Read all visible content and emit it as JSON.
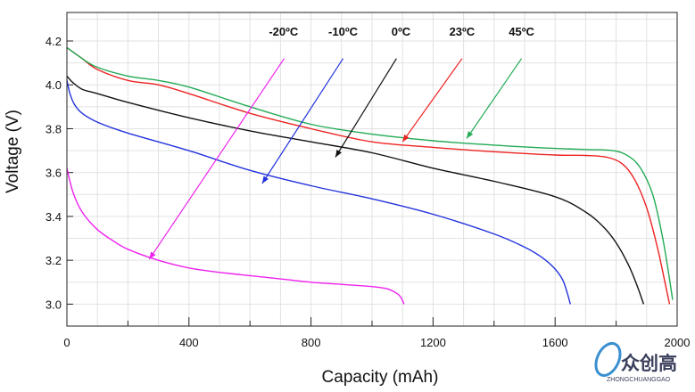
{
  "chart_data": {
    "type": "line",
    "title": "",
    "xlabel": "Capacity (mAh)",
    "ylabel": "Voltage (V)",
    "xlim": [
      0,
      2000
    ],
    "ylim": [
      2.9,
      4.33
    ],
    "x_ticks": [
      0,
      400,
      800,
      1200,
      1600,
      2000
    ],
    "x_tick_labels": [
      "0",
      "400",
      "800",
      "1200",
      "1600",
      "2000"
    ],
    "y_ticks": [
      3.0,
      3.2,
      3.4,
      3.6,
      3.8,
      4.0,
      4.2
    ],
    "y_tick_labels": [
      "3.0",
      "3.2",
      "3.4",
      "3.6",
      "3.8",
      "4.0",
      "4.2"
    ],
    "grid": true,
    "series": [
      {
        "name": "-20°C",
        "label": "-20ºC",
        "color": "#ee22ee",
        "x": [
          0,
          20,
          50,
          100,
          150,
          200,
          300,
          400,
          500,
          600,
          700,
          800,
          900,
          1000,
          1050,
          1080,
          1095,
          1105
        ],
        "y": [
          3.62,
          3.51,
          3.42,
          3.34,
          3.29,
          3.25,
          3.2,
          3.165,
          3.145,
          3.13,
          3.115,
          3.1,
          3.09,
          3.08,
          3.07,
          3.05,
          3.03,
          3.0
        ],
        "arrow_to": [
          270,
          3.205
        ]
      },
      {
        "name": "-10°C",
        "label": "-10ºC",
        "color": "#2233dd",
        "x": [
          0,
          10,
          25,
          50,
          100,
          200,
          400,
          600,
          800,
          1000,
          1200,
          1400,
          1500,
          1560,
          1600,
          1625,
          1640,
          1650
        ],
        "y": [
          4.02,
          3.96,
          3.91,
          3.87,
          3.83,
          3.78,
          3.7,
          3.61,
          3.54,
          3.48,
          3.41,
          3.32,
          3.26,
          3.21,
          3.16,
          3.11,
          3.05,
          3.0
        ],
        "arrow_to": [
          640,
          3.55
        ]
      },
      {
        "name": "0°C",
        "label": "0ºC",
        "color": "#111111",
        "x": [
          0,
          20,
          50,
          100,
          200,
          400,
          600,
          800,
          1000,
          1200,
          1400,
          1600,
          1700,
          1760,
          1800,
          1840,
          1870,
          1890
        ],
        "y": [
          4.04,
          4.01,
          3.98,
          3.96,
          3.92,
          3.85,
          3.79,
          3.74,
          3.69,
          3.62,
          3.56,
          3.49,
          3.42,
          3.35,
          3.28,
          3.18,
          3.08,
          3.0
        ],
        "arrow_to": [
          880,
          3.67
        ]
      },
      {
        "name": "23°C",
        "label": "23ºC",
        "color": "#ee2222",
        "x": [
          0,
          50,
          100,
          200,
          300,
          400,
          600,
          800,
          1000,
          1200,
          1400,
          1600,
          1700,
          1770,
          1820,
          1860,
          1900,
          1935,
          1960,
          1975
        ],
        "y": [
          4.17,
          4.12,
          4.07,
          4.02,
          4.0,
          3.96,
          3.87,
          3.8,
          3.74,
          3.715,
          3.695,
          3.68,
          3.678,
          3.67,
          3.64,
          3.57,
          3.44,
          3.26,
          3.1,
          3.0
        ],
        "arrow_to": [
          1100,
          3.74
        ]
      },
      {
        "name": "45°C",
        "label": "45ºC",
        "color": "#22aa55",
        "x": [
          0,
          50,
          100,
          200,
          300,
          400,
          600,
          800,
          1000,
          1200,
          1400,
          1600,
          1700,
          1790,
          1840,
          1880,
          1920,
          1950,
          1970,
          1985
        ],
        "y": [
          4.17,
          4.12,
          4.08,
          4.04,
          4.02,
          3.99,
          3.9,
          3.82,
          3.775,
          3.745,
          3.725,
          3.71,
          3.705,
          3.7,
          3.675,
          3.62,
          3.5,
          3.32,
          3.16,
          3.02
        ],
        "arrow_to": [
          1310,
          3.755
        ]
      }
    ],
    "annotations": [
      {
        "text": "-20ºC",
        "series": "-20°C",
        "label_anchor": [
          710,
          4.245
        ],
        "line_start": [
          712,
          4.12
        ]
      },
      {
        "text": "-10ºC",
        "series": "-10°C",
        "label_anchor": [
          905,
          4.245
        ],
        "line_start": [
          905,
          4.12
        ]
      },
      {
        "text": "0ºC",
        "series": "0°C",
        "label_anchor": [
          1095,
          4.245
        ],
        "line_start": [
          1080,
          4.12
        ]
      },
      {
        "text": "23ºC",
        "series": "23°C",
        "label_anchor": [
          1295,
          4.245
        ],
        "line_start": [
          1295,
          4.12
        ]
      },
      {
        "text": "45ºC",
        "series": "45°C",
        "label_anchor": [
          1490,
          4.245
        ],
        "line_start": [
          1490,
          4.12
        ]
      }
    ]
  },
  "watermark": {
    "text": "众创高",
    "subtext": "ZHONGCHUANGGAO"
  }
}
